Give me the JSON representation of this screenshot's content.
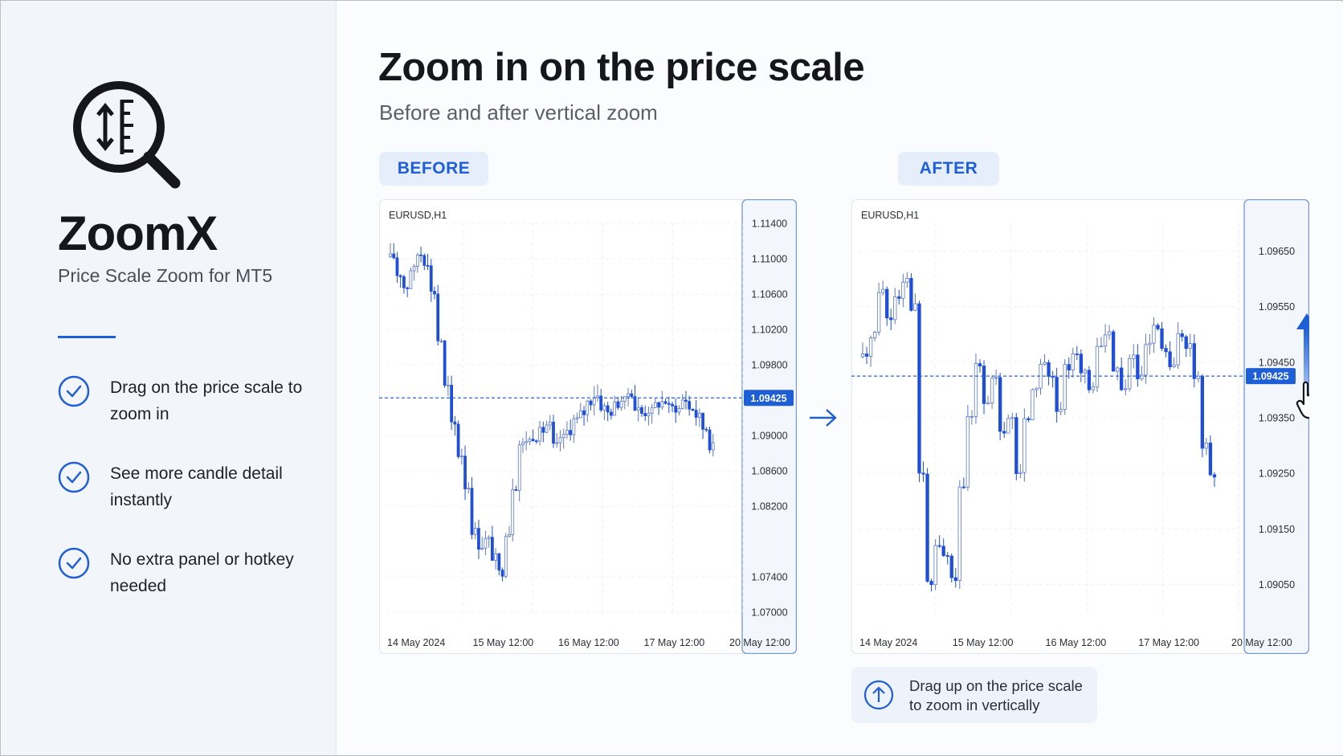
{
  "sidebar": {
    "logo_icon": "magnifier-price-scale-icon",
    "brand": "ZoomX",
    "tagline": "Price Scale Zoom for MT5",
    "features": [
      {
        "icon": "check-circle-icon",
        "text": "Drag on the price scale to zoom in"
      },
      {
        "icon": "check-circle-icon",
        "text": "See more candle detail instantly"
      },
      {
        "icon": "check-circle-icon",
        "text": "No extra panel or hotkey needed"
      }
    ]
  },
  "main": {
    "title": "Zoom in on the price scale",
    "subtitle": "Before and after vertical zoom",
    "before_label": "BEFORE",
    "after_label": "AFTER",
    "note": "Drag up on the price scale to zoom in vertically",
    "note_icon": "arrow-up-circle-icon"
  },
  "colors": {
    "accent": "#1f5fd6",
    "bear": "#1f4fd8",
    "bull_outline": "#3b5fd0",
    "text_dark": "#15171c"
  },
  "chart_data": [
    {
      "type": "candlestick",
      "symbol": "EURUSD,H1",
      "y_ticks": [
        "1.11400",
        "1.11000",
        "1.10600",
        "1.10200",
        "1.09800",
        "1.09425",
        "1.09000",
        "1.08600",
        "1.08200",
        "1.07400",
        "1.07000"
      ],
      "ylim": [
        1.07,
        1.114
      ],
      "current_price": "1.09425",
      "x_ticks": [
        "14 May 2024",
        "15 May 12:00",
        "16 May 12:00",
        "17 May 12:00",
        "20 May 12:00"
      ],
      "close_path": [
        1.1102,
        1.1082,
        1.1068,
        1.1088,
        1.1105,
        1.1096,
        1.1062,
        1.1008,
        1.0955,
        1.0912,
        1.0878,
        1.0842,
        1.0792,
        1.0775,
        1.0782,
        1.0762,
        1.0745,
        1.079,
        1.0842,
        1.089,
        1.0895,
        1.0898,
        1.0905,
        1.0912,
        1.0888,
        1.0898,
        1.0905,
        1.0918,
        1.0925,
        1.0938,
        1.0945,
        1.0932,
        1.0926,
        1.0935,
        1.094,
        1.0948,
        1.093,
        1.0925,
        1.0928,
        1.0935,
        1.0938,
        1.0932,
        1.093,
        1.094,
        1.093,
        1.0922,
        1.0908,
        1.0888
      ]
    },
    {
      "type": "candlestick",
      "symbol": "EURUSD,H1",
      "y_ticks": [
        "1.09650",
        "1.09550",
        "1.09450",
        "1.09425",
        "1.09350",
        "1.09250",
        "1.09150",
        "1.09050"
      ],
      "ylim": [
        1.09,
        1.097
      ],
      "current_price": "1.09425",
      "x_ticks": [
        "14 May 2024",
        "15 May 12:00",
        "16 May 12:00",
        "17 May 12:00",
        "20 May 12:00"
      ],
      "close_path": [
        1.0946,
        1.095,
        1.0958,
        1.0953,
        1.0957,
        1.096,
        1.0955,
        1.0925,
        1.0905,
        1.0912,
        1.091,
        1.0906,
        1.0922,
        1.0935,
        1.0945,
        1.0938,
        1.0942,
        1.0932,
        1.0935,
        1.0925,
        1.0935,
        1.094,
        1.0945,
        1.0942,
        1.0936,
        1.0944,
        1.0947,
        1.0943,
        1.094,
        1.0948,
        1.095,
        1.0944,
        1.094,
        1.0946,
        1.0942,
        1.0948,
        1.0951,
        1.0947,
        1.0944,
        1.095,
        1.0948,
        1.0942,
        1.093,
        1.0925
      ]
    }
  ]
}
